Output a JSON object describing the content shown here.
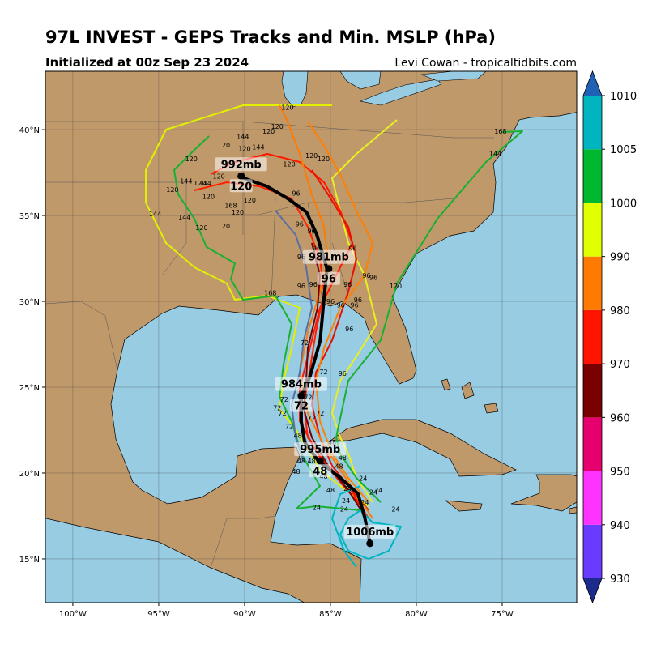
{
  "header": {
    "title": "97L INVEST - GEPS Tracks and Min. MSLP (hPa)",
    "subtitle": "Initialized at 00z Sep 23 2024",
    "credit": "Levi Cowan - tropicaltidbits.com"
  },
  "map": {
    "lon_range": [
      -101.6,
      -70.66
    ],
    "lat_range": [
      12.45,
      43.4
    ],
    "lon_ticks": [
      {
        "value": -100,
        "label": "100°W"
      },
      {
        "value": -95,
        "label": "95°W"
      },
      {
        "value": -90,
        "label": "90°W"
      },
      {
        "value": -85,
        "label": "85°W"
      },
      {
        "value": -80,
        "label": "80°W"
      },
      {
        "value": -75,
        "label": "75°W"
      }
    ],
    "lat_ticks": [
      {
        "value": 15,
        "label": "15°N"
      },
      {
        "value": 20,
        "label": "20°N"
      },
      {
        "value": 25,
        "label": "25°N"
      },
      {
        "value": 30,
        "label": "30°N"
      },
      {
        "value": 35,
        "label": "35°N"
      },
      {
        "value": 40,
        "label": "40°N"
      }
    ],
    "grid": true,
    "mean_track": {
      "color": "#000000",
      "lon": [
        -90.4,
        -88.7,
        -87.5,
        -86.4,
        -85.8,
        -85.2,
        -85.4,
        -85.6,
        -86.2,
        -86.7,
        -86.7,
        -86.5,
        -85.7,
        -84.4,
        -83.4,
        -83.0,
        -82.7
      ],
      "lat": [
        37.3,
        36.7,
        36.0,
        35.2,
        33.9,
        31.9,
        29.9,
        27.7,
        25.6,
        24.5,
        23.0,
        21.8,
        20.7,
        19.7,
        18.8,
        17.4,
        15.9
      ]
    },
    "intensity_labels": [
      {
        "lon": -82.7,
        "lat": 15.9,
        "pressure": "1006mb"
      },
      {
        "lon": -85.6,
        "lat": 20.7,
        "pressure": "995mb",
        "hour": 48
      },
      {
        "lon": -86.7,
        "lat": 24.5,
        "pressure": "984mb",
        "hour": 72
      },
      {
        "lon": -85.1,
        "lat": 31.9,
        "pressure": "981mb",
        "hour": 96
      },
      {
        "lon": -90.2,
        "lat": 37.3,
        "pressure": "992mb",
        "hour": 120
      }
    ],
    "member_labels": [
      {
        "lon": -87.5,
        "lat": 41.3,
        "hour": 120
      },
      {
        "lon": -88.6,
        "lat": 39.9,
        "hour": 120
      },
      {
        "lon": -88.1,
        "lat": 40.2,
        "hour": 120
      },
      {
        "lon": -90.1,
        "lat": 39.6,
        "hour": 144
      },
      {
        "lon": -89.2,
        "lat": 39.0,
        "hour": 144
      },
      {
        "lon": -91.2,
        "lat": 39.1,
        "hour": 120
      },
      {
        "lon": -90.0,
        "lat": 38.9,
        "hour": 120
      },
      {
        "lon": -93.1,
        "lat": 38.3,
        "hour": 120
      },
      {
        "lon": -86.1,
        "lat": 38.5,
        "hour": 120
      },
      {
        "lon": -85.4,
        "lat": 38.3,
        "hour": 120
      },
      {
        "lon": -87.4,
        "lat": 38.0,
        "hour": 120
      },
      {
        "lon": -93.4,
        "lat": 37.0,
        "hour": 144
      },
      {
        "lon": -91.5,
        "lat": 37.3,
        "hour": 120
      },
      {
        "lon": -92.6,
        "lat": 36.9,
        "hour": 120
      },
      {
        "lon": -92.3,
        "lat": 36.9,
        "hour": 144
      },
      {
        "lon": -94.2,
        "lat": 36.5,
        "hour": 120
      },
      {
        "lon": -92.1,
        "lat": 36.1,
        "hour": 120
      },
      {
        "lon": -89.7,
        "lat": 35.9,
        "hour": 120
      },
      {
        "lon": -90.8,
        "lat": 35.6,
        "hour": 168
      },
      {
        "lon": -90.4,
        "lat": 35.2,
        "hour": 120
      },
      {
        "lon": -95.2,
        "lat": 35.1,
        "hour": 144
      },
      {
        "lon": -93.5,
        "lat": 34.9,
        "hour": 144
      },
      {
        "lon": -92.5,
        "lat": 34.3,
        "hour": 120
      },
      {
        "lon": -91.2,
        "lat": 34.4,
        "hour": 120
      },
      {
        "lon": -75.1,
        "lat": 39.9,
        "hour": 168
      },
      {
        "lon": -75.4,
        "lat": 38.6,
        "hour": 144
      },
      {
        "lon": -87.0,
        "lat": 36.3,
        "hour": 96
      },
      {
        "lon": -86.8,
        "lat": 34.5,
        "hour": 96
      },
      {
        "lon": -86.1,
        "lat": 34.1,
        "hour": 96
      },
      {
        "lon": -85.8,
        "lat": 33.1,
        "hour": 96
      },
      {
        "lon": -83.7,
        "lat": 33.1,
        "hour": 96
      },
      {
        "lon": -86.7,
        "lat": 32.6,
        "hour": 96
      },
      {
        "lon": -82.9,
        "lat": 31.5,
        "hour": 96
      },
      {
        "lon": -82.5,
        "lat": 31.4,
        "hour": 96
      },
      {
        "lon": -84.0,
        "lat": 31.0,
        "hour": 96
      },
      {
        "lon": -81.2,
        "lat": 30.9,
        "hour": 120
      },
      {
        "lon": -86.7,
        "lat": 30.9,
        "hour": 96
      },
      {
        "lon": -86.0,
        "lat": 31.0,
        "hour": 96
      },
      {
        "lon": -88.5,
        "lat": 30.5,
        "hour": 168
      },
      {
        "lon": -85.0,
        "lat": 30.0,
        "hour": 96
      },
      {
        "lon": -84.4,
        "lat": 29.8,
        "hour": 96
      },
      {
        "lon": -83.6,
        "lat": 29.8,
        "hour": 96
      },
      {
        "lon": -83.4,
        "lat": 30.1,
        "hour": 96
      },
      {
        "lon": -83.9,
        "lat": 28.4,
        "hour": 96
      },
      {
        "lon": -86.5,
        "lat": 27.6,
        "hour": 72
      },
      {
        "lon": -85.4,
        "lat": 25.9,
        "hour": 72
      },
      {
        "lon": -84.3,
        "lat": 25.8,
        "hour": 96
      },
      {
        "lon": -86.3,
        "lat": 24.4,
        "hour": 72
      },
      {
        "lon": -87.7,
        "lat": 24.3,
        "hour": 72
      },
      {
        "lon": -88.1,
        "lat": 23.8,
        "hour": 72
      },
      {
        "lon": -87.8,
        "lat": 23.5,
        "hour": 72
      },
      {
        "lon": -85.6,
        "lat": 23.5,
        "hour": 72
      },
      {
        "lon": -86.1,
        "lat": 23.2,
        "hour": 72
      },
      {
        "lon": -87.4,
        "lat": 22.7,
        "hour": 72
      },
      {
        "lon": -86.9,
        "lat": 22.2,
        "hour": 48
      },
      {
        "lon": -84.9,
        "lat": 21.8,
        "hour": 48
      },
      {
        "lon": -84.3,
        "lat": 20.9,
        "hour": 48
      },
      {
        "lon": -86.7,
        "lat": 20.7,
        "hour": 48
      },
      {
        "lon": -86.1,
        "lat": 20.7,
        "hour": 48
      },
      {
        "lon": -87.0,
        "lat": 20.1,
        "hour": 48
      },
      {
        "lon": -84.5,
        "lat": 20.4,
        "hour": 48
      },
      {
        "lon": -85.4,
        "lat": 19.8,
        "hour": 48
      },
      {
        "lon": -83.1,
        "lat": 19.7,
        "hour": 24
      },
      {
        "lon": -85.0,
        "lat": 19.0,
        "hour": 48
      },
      {
        "lon": -84.0,
        "lat": 19.1,
        "hour": 24
      },
      {
        "lon": -82.5,
        "lat": 18.9,
        "hour": 24
      },
      {
        "lon": -82.2,
        "lat": 19.0,
        "hour": 24
      },
      {
        "lon": -84.1,
        "lat": 18.4,
        "hour": 24
      },
      {
        "lon": -83.0,
        "lat": 18.3,
        "hour": 24
      },
      {
        "lon": -85.8,
        "lat": 18.0,
        "hour": 24
      },
      {
        "lon": -84.2,
        "lat": 17.9,
        "hour": 24
      },
      {
        "lon": -81.2,
        "lat": 17.9,
        "hour": 24
      }
    ]
  },
  "colorbar": {
    "ticks": [
      930,
      940,
      950,
      960,
      970,
      980,
      990,
      1000,
      1005,
      1010
    ],
    "colors": [
      "#6a3aff",
      "#ff33ff",
      "#e6006e",
      "#7a0000",
      "#ff1400",
      "#ff7a00",
      "#e0ff00",
      "#00b82e",
      "#00b5c0"
    ],
    "under_color": "#1c2a8c",
    "over_color": "#1f62b5"
  }
}
